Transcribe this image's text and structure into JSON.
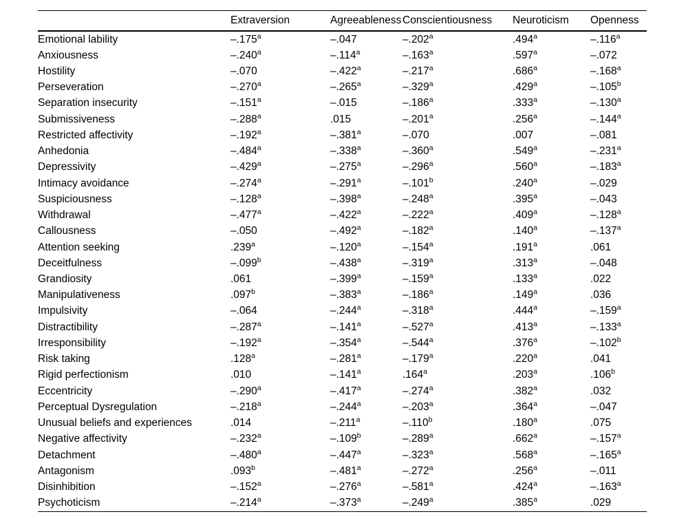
{
  "colors": {
    "text": "#000000",
    "rule": "#000000",
    "background": "#ffffff"
  },
  "table": {
    "corner_label": "",
    "columns": [
      "Extraversion",
      "Agreeableness",
      "Conscientiousness",
      "Neuroticism",
      "Openness"
    ],
    "superscript_markers": [
      "a",
      "b"
    ],
    "rows": [
      {
        "label": "Emotional lability",
        "values": [
          {
            "v": "–.175",
            "sup": "a"
          },
          {
            "v": "–.047",
            "sup": ""
          },
          {
            "v": "–.202",
            "sup": "a"
          },
          {
            "v": ".494",
            "sup": "a"
          },
          {
            "v": "–.116",
            "sup": "a"
          }
        ]
      },
      {
        "label": "Anxiousness",
        "values": [
          {
            "v": "–.240",
            "sup": "a"
          },
          {
            "v": "–.114",
            "sup": "a"
          },
          {
            "v": "–.163",
            "sup": "a"
          },
          {
            "v": ".597",
            "sup": "a"
          },
          {
            "v": "–.072",
            "sup": ""
          }
        ]
      },
      {
        "label": "Hostility",
        "values": [
          {
            "v": "–.070",
            "sup": ""
          },
          {
            "v": "–.422",
            "sup": "a"
          },
          {
            "v": "–.217",
            "sup": "a"
          },
          {
            "v": ".686",
            "sup": "a"
          },
          {
            "v": "–.168",
            "sup": "a"
          }
        ]
      },
      {
        "label": "Perseveration",
        "values": [
          {
            "v": "–.270",
            "sup": "a"
          },
          {
            "v": "–.265",
            "sup": "a"
          },
          {
            "v": "–.329",
            "sup": "a"
          },
          {
            "v": ".429",
            "sup": "a"
          },
          {
            "v": "–.105",
            "sup": "b"
          }
        ]
      },
      {
        "label": "Separation insecurity",
        "values": [
          {
            "v": "–.151",
            "sup": "a"
          },
          {
            "v": "–.015",
            "sup": ""
          },
          {
            "v": "–.186",
            "sup": "a"
          },
          {
            "v": ".333",
            "sup": "a"
          },
          {
            "v": "–.130",
            "sup": "a"
          }
        ]
      },
      {
        "label": "Submissiveness",
        "values": [
          {
            "v": "–.288",
            "sup": "a"
          },
          {
            "v": ".015",
            "sup": ""
          },
          {
            "v": "–.201",
            "sup": "a"
          },
          {
            "v": ".256",
            "sup": "a"
          },
          {
            "v": "–.144",
            "sup": "a"
          }
        ]
      },
      {
        "label": "Restricted affectivity",
        "values": [
          {
            "v": "–.192",
            "sup": "a"
          },
          {
            "v": "–.381",
            "sup": "a"
          },
          {
            "v": "–.070",
            "sup": ""
          },
          {
            "v": ".007",
            "sup": ""
          },
          {
            "v": "–.081",
            "sup": ""
          }
        ]
      },
      {
        "label": "Anhedonia",
        "values": [
          {
            "v": "–.484",
            "sup": "a"
          },
          {
            "v": "–.338",
            "sup": "a"
          },
          {
            "v": "–.360",
            "sup": "a"
          },
          {
            "v": ".549",
            "sup": "a"
          },
          {
            "v": "–.231",
            "sup": "a"
          }
        ]
      },
      {
        "label": "Depressivity",
        "values": [
          {
            "v": "–.429",
            "sup": "a"
          },
          {
            "v": "–.275",
            "sup": "a"
          },
          {
            "v": "–.296",
            "sup": "a"
          },
          {
            "v": ".560",
            "sup": "a"
          },
          {
            "v": "–.183",
            "sup": "a"
          }
        ]
      },
      {
        "label": "Intimacy avoidance",
        "values": [
          {
            "v": "–.274",
            "sup": "a"
          },
          {
            "v": "–.291",
            "sup": "a"
          },
          {
            "v": "–.101",
            "sup": "b"
          },
          {
            "v": ".240",
            "sup": "a"
          },
          {
            "v": "–.029",
            "sup": ""
          }
        ]
      },
      {
        "label": "Suspiciousness",
        "values": [
          {
            "v": "–.128",
            "sup": "a"
          },
          {
            "v": "–.398",
            "sup": "a"
          },
          {
            "v": "–.248",
            "sup": "a"
          },
          {
            "v": ".395",
            "sup": "a"
          },
          {
            "v": "–.043",
            "sup": ""
          }
        ]
      },
      {
        "label": "Withdrawal",
        "values": [
          {
            "v": "–.477",
            "sup": "a"
          },
          {
            "v": "–.422",
            "sup": "a"
          },
          {
            "v": "–.222",
            "sup": "a"
          },
          {
            "v": ".409",
            "sup": "a"
          },
          {
            "v": "–.128",
            "sup": "a"
          }
        ]
      },
      {
        "label": "Callousness",
        "values": [
          {
            "v": "–.050",
            "sup": ""
          },
          {
            "v": "–.492",
            "sup": "a"
          },
          {
            "v": "–.182",
            "sup": "a"
          },
          {
            "v": ".140",
            "sup": "a"
          },
          {
            "v": "–.137",
            "sup": "a"
          }
        ]
      },
      {
        "label": "Attention seeking",
        "values": [
          {
            "v": ".239",
            "sup": "a"
          },
          {
            "v": "–.120",
            "sup": "a"
          },
          {
            "v": "–.154",
            "sup": "a"
          },
          {
            "v": ".191",
            "sup": "a"
          },
          {
            "v": ".061",
            "sup": ""
          }
        ]
      },
      {
        "label": "Deceitfulness",
        "values": [
          {
            "v": "–.099",
            "sup": "b"
          },
          {
            "v": "–.438",
            "sup": "a"
          },
          {
            "v": "–.319",
            "sup": "a"
          },
          {
            "v": ".313",
            "sup": "a"
          },
          {
            "v": "–.048",
            "sup": ""
          }
        ]
      },
      {
        "label": "Grandiosity",
        "values": [
          {
            "v": ".061",
            "sup": ""
          },
          {
            "v": "–.399",
            "sup": "a"
          },
          {
            "v": "–.159",
            "sup": "a"
          },
          {
            "v": ".133",
            "sup": "a"
          },
          {
            "v": ".022",
            "sup": ""
          }
        ]
      },
      {
        "label": "Manipulativeness",
        "values": [
          {
            "v": ".097",
            "sup": "b"
          },
          {
            "v": "–.383",
            "sup": "a"
          },
          {
            "v": "–.186",
            "sup": "a"
          },
          {
            "v": ".149",
            "sup": "a"
          },
          {
            "v": ".036",
            "sup": ""
          }
        ]
      },
      {
        "label": "Impulsivity",
        "values": [
          {
            "v": "–.064",
            "sup": ""
          },
          {
            "v": "–.244",
            "sup": "a"
          },
          {
            "v": "–.318",
            "sup": "a"
          },
          {
            "v": ".444",
            "sup": "a"
          },
          {
            "v": "–.159",
            "sup": "a"
          }
        ]
      },
      {
        "label": "Distractibility",
        "values": [
          {
            "v": "–.287",
            "sup": "a"
          },
          {
            "v": "–.141",
            "sup": "a"
          },
          {
            "v": "–.527",
            "sup": "a"
          },
          {
            "v": ".413",
            "sup": "a"
          },
          {
            "v": "–.133",
            "sup": "a"
          }
        ]
      },
      {
        "label": "Irresponsibility",
        "values": [
          {
            "v": "–.192",
            "sup": "a"
          },
          {
            "v": "–.354",
            "sup": "a"
          },
          {
            "v": "–.544",
            "sup": "a"
          },
          {
            "v": ".376",
            "sup": "a"
          },
          {
            "v": "–.102",
            "sup": "b"
          }
        ]
      },
      {
        "label": "Risk taking",
        "values": [
          {
            "v": ".128",
            "sup": "a"
          },
          {
            "v": "–.281",
            "sup": "a"
          },
          {
            "v": "–.179",
            "sup": "a"
          },
          {
            "v": ".220",
            "sup": "a"
          },
          {
            "v": ".041",
            "sup": ""
          }
        ]
      },
      {
        "label": "Rigid perfectionism",
        "values": [
          {
            "v": ".010",
            "sup": ""
          },
          {
            "v": "–.141",
            "sup": "a"
          },
          {
            "v": ".164",
            "sup": "a"
          },
          {
            "v": ".203",
            "sup": "a"
          },
          {
            "v": ".106",
            "sup": "b"
          }
        ]
      },
      {
        "label": "Eccentricity",
        "values": [
          {
            "v": "–.290",
            "sup": "a"
          },
          {
            "v": "–.417",
            "sup": "a"
          },
          {
            "v": "–.274",
            "sup": "a"
          },
          {
            "v": ".382",
            "sup": "a"
          },
          {
            "v": ".032",
            "sup": ""
          }
        ]
      },
      {
        "label": "Perceptual Dysregulation",
        "values": [
          {
            "v": "–.218",
            "sup": "a"
          },
          {
            "v": "–.244",
            "sup": "a"
          },
          {
            "v": "–.203",
            "sup": "a"
          },
          {
            "v": ".364",
            "sup": "a"
          },
          {
            "v": "–.047",
            "sup": ""
          }
        ]
      },
      {
        "label": "Unusual beliefs and experiences",
        "values": [
          {
            "v": ".014",
            "sup": ""
          },
          {
            "v": "–.211",
            "sup": "a"
          },
          {
            "v": "–.110",
            "sup": "b"
          },
          {
            "v": ".180",
            "sup": "a"
          },
          {
            "v": ".075",
            "sup": ""
          }
        ]
      },
      {
        "label": "Negative affectivity",
        "values": [
          {
            "v": "–.232",
            "sup": "a"
          },
          {
            "v": "–.109",
            "sup": "b"
          },
          {
            "v": "–.289",
            "sup": "a"
          },
          {
            "v": ".662",
            "sup": "a"
          },
          {
            "v": "–.157",
            "sup": "a"
          }
        ]
      },
      {
        "label": "Detachment",
        "values": [
          {
            "v": "–.480",
            "sup": "a"
          },
          {
            "v": "–.447",
            "sup": "a"
          },
          {
            "v": "–.323",
            "sup": "a"
          },
          {
            "v": ".568",
            "sup": "a"
          },
          {
            "v": "–.165",
            "sup": "a"
          }
        ]
      },
      {
        "label": "Antagonism",
        "values": [
          {
            "v": ".093",
            "sup": "b"
          },
          {
            "v": "–.481",
            "sup": "a"
          },
          {
            "v": "–.272",
            "sup": "a"
          },
          {
            "v": ".256",
            "sup": "a"
          },
          {
            "v": "–.011",
            "sup": ""
          }
        ]
      },
      {
        "label": "Disinhibition",
        "values": [
          {
            "v": "–.152",
            "sup": "a"
          },
          {
            "v": "–.276",
            "sup": "a"
          },
          {
            "v": "–.581",
            "sup": "a"
          },
          {
            "v": ".424",
            "sup": "a"
          },
          {
            "v": "–.163",
            "sup": "a"
          }
        ]
      },
      {
        "label": "Psychoticism",
        "values": [
          {
            "v": "–.214",
            "sup": "a"
          },
          {
            "v": "–.373",
            "sup": "a"
          },
          {
            "v": "–.249",
            "sup": "a"
          },
          {
            "v": ".385",
            "sup": "a"
          },
          {
            "v": ".029",
            "sup": ""
          }
        ]
      }
    ]
  }
}
